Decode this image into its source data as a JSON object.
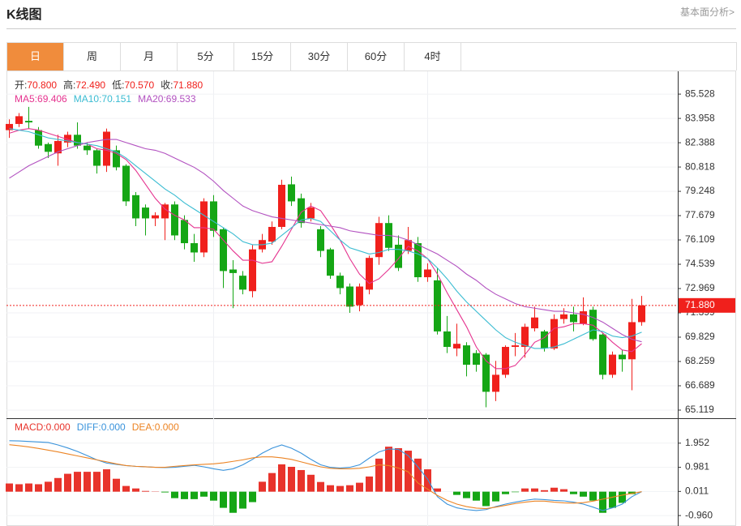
{
  "header": {
    "title": "K线图",
    "link": "基本面分析>"
  },
  "tabs": {
    "items": [
      "日",
      "周",
      "月",
      "5分",
      "15分",
      "30分",
      "60分",
      "4时"
    ],
    "active": 0
  },
  "chart_data": [
    {
      "type": "candlestick",
      "legend": [
        {
          "label": "开:",
          "value": "70.800"
        },
        {
          "label": "高:",
          "value": "72.490"
        },
        {
          "label": "低:",
          "value": "70.570"
        },
        {
          "label": "收:",
          "value": "71.880"
        }
      ],
      "open": [
        83.2,
        83.6,
        83.8,
        83.2,
        82.3,
        81.7,
        82.4,
        82.9,
        82.2,
        81.9,
        80.9,
        81.9,
        80.9,
        79.0,
        78.2,
        77.5,
        77.5,
        78.4,
        77.4,
        75.9,
        75.3,
        78.6,
        76.8,
        74.2,
        73.8,
        72.8,
        75.5,
        76.0,
        76.95,
        79.7,
        78.8,
        77.5,
        76.8,
        75.5,
        73.8,
        73.1,
        71.9,
        72.9,
        75.0,
        77.2,
        75.8,
        75.4,
        75.9,
        73.7,
        73.5,
        70.2,
        69.1,
        69.3,
        68.8,
        68.7,
        66.3,
        67.4,
        69.2,
        69.2,
        70.4,
        70.2,
        69.1,
        71.0,
        71.3,
        70.7,
        71.6,
        70.0,
        67.4,
        68.7,
        68.4,
        70.8
      ],
      "high": [
        83.9,
        84.3,
        84.7,
        83.4,
        82.4,
        82.9,
        83.1,
        83.7,
        82.4,
        82.0,
        83.3,
        82.2,
        81.0,
        79.2,
        78.4,
        77.9,
        78.5,
        78.6,
        77.7,
        76.5,
        78.8,
        79.0,
        76.9,
        74.8,
        74.1,
        75.8,
        76.5,
        77.3,
        80.0,
        80.2,
        79.1,
        78.5,
        77.0,
        75.6,
        74.0,
        73.3,
        73.3,
        75.1,
        77.6,
        77.7,
        76.4,
        76.95,
        76.3,
        74.6,
        74.3,
        71.2,
        70.7,
        69.5,
        69.0,
        68.8,
        68.3,
        69.3,
        70.1,
        70.7,
        71.8,
        70.3,
        71.3,
        71.7,
        71.8,
        72.4,
        71.8,
        70.1,
        68.9,
        69.0,
        72.3,
        72.49
      ],
      "low": [
        82.7,
        83.4,
        83.3,
        82.0,
        81.4,
        80.9,
        82.1,
        82.0,
        81.6,
        80.4,
        80.5,
        80.6,
        78.3,
        77.0,
        76.4,
        77.0,
        76.1,
        76.1,
        75.5,
        74.7,
        75.0,
        76.3,
        73.0,
        71.7,
        72.6,
        72.4,
        75.3,
        75.8,
        76.8,
        78.3,
        76.9,
        77.3,
        75.0,
        73.6,
        72.6,
        71.4,
        71.5,
        72.6,
        74.5,
        75.4,
        74.1,
        75.2,
        73.4,
        73.4,
        70.0,
        68.8,
        68.6,
        67.3,
        67.6,
        65.3,
        65.7,
        67.2,
        68.6,
        68.5,
        70.2,
        68.9,
        69.0,
        70.7,
        70.2,
        70.6,
        69.6,
        67.1,
        67.2,
        67.6,
        66.4,
        70.57
      ],
      "close": [
        83.6,
        84.1,
        83.7,
        82.2,
        81.8,
        82.5,
        82.9,
        82.2,
        81.9,
        80.9,
        83.1,
        80.8,
        78.6,
        77.5,
        77.5,
        77.7,
        78.4,
        76.4,
        75.9,
        75.3,
        78.6,
        76.7,
        74.1,
        73.97,
        72.9,
        75.5,
        76.1,
        76.95,
        79.67,
        78.6,
        77.2,
        78.2,
        75.4,
        73.8,
        73.0,
        71.8,
        73.1,
        74.95,
        77.2,
        75.6,
        74.3,
        76.1,
        73.7,
        74.2,
        70.2,
        69.2,
        69.4,
        68.05,
        68.05,
        66.3,
        67.4,
        69.2,
        69.3,
        70.5,
        71.1,
        69.1,
        71.0,
        71.3,
        70.8,
        71.5,
        69.7,
        67.4,
        68.7,
        68.4,
        70.8,
        71.88
      ],
      "up_color": "#f0201c",
      "down_color": "#15a615",
      "series": [
        {
          "name": "MA5:",
          "value_label": "69.406",
          "color": "#e5338f",
          "values": [
            83.0,
            83.2,
            83.3,
            83.2,
            83.0,
            82.8,
            82.6,
            82.4,
            82.3,
            82.0,
            81.9,
            81.7,
            81.3,
            80.6,
            79.7,
            78.8,
            78.1,
            77.7,
            77.4,
            76.9,
            76.9,
            76.8,
            76.1,
            75.4,
            74.8,
            74.8,
            74.6,
            74.7,
            75.7,
            76.8,
            77.9,
            78.3,
            78.0,
            77.1,
            76.1,
            74.9,
            73.9,
            73.3,
            73.6,
            74.2,
            74.9,
            75.7,
            75.4,
            74.9,
            73.9,
            72.7,
            71.6,
            70.5,
            69.2,
            68.3,
            67.8,
            67.8,
            68.0,
            68.7,
            69.5,
            69.8,
            70.4,
            70.5,
            70.7,
            70.7,
            70.6,
            70.1,
            69.5,
            69.0,
            68.9,
            69.406
          ]
        },
        {
          "name": "MA10:",
          "value_label": "70.151",
          "color": "#3bbcd2",
          "values": [
            83.3,
            83.2,
            83.1,
            82.9,
            82.7,
            82.6,
            82.5,
            82.4,
            82.3,
            82.2,
            82.0,
            81.8,
            81.4,
            80.9,
            80.4,
            79.9,
            79.4,
            79.0,
            78.5,
            78.1,
            77.7,
            77.3,
            76.9,
            76.5,
            76.0,
            75.8,
            75.8,
            75.9,
            76.4,
            76.9,
            77.4,
            77.5,
            77.3,
            76.7,
            76.1,
            75.6,
            75.4,
            75.2,
            75.3,
            75.5,
            75.5,
            75.4,
            75.2,
            74.9,
            74.3,
            73.6,
            72.8,
            72.1,
            71.5,
            70.9,
            70.3,
            69.8,
            69.5,
            69.3,
            69.1,
            69.1,
            69.2,
            69.4,
            69.7,
            70.0,
            70.3,
            70.2,
            69.9,
            69.8,
            69.9,
            70.151
          ]
        },
        {
          "name": "MA20:",
          "value_label": "69.533",
          "color": "#b251c0",
          "values": [
            80.1,
            80.5,
            80.9,
            81.2,
            81.5,
            81.8,
            82.0,
            82.2,
            82.4,
            82.5,
            82.6,
            82.6,
            82.4,
            82.2,
            82.0,
            81.9,
            81.7,
            81.4,
            81.1,
            80.8,
            80.4,
            79.9,
            79.3,
            78.8,
            78.3,
            78.0,
            77.8,
            77.6,
            77.5,
            77.4,
            77.3,
            77.2,
            77.1,
            77.0,
            76.9,
            76.7,
            76.6,
            76.5,
            76.4,
            76.4,
            76.3,
            76.1,
            75.8,
            75.5,
            75.2,
            74.8,
            74.4,
            73.9,
            73.5,
            73.0,
            72.6,
            72.3,
            72.0,
            71.8,
            71.7,
            71.6,
            71.5,
            71.5,
            71.4,
            71.3,
            71.1,
            70.8,
            70.4,
            70.0,
            69.7,
            69.533
          ]
        }
      ],
      "last_price": {
        "value": 71.88,
        "label": "71.880"
      },
      "ylim": [
        64.595,
        86.999
      ],
      "yticks": [
        85.528,
        83.958,
        82.388,
        80.818,
        79.248,
        77.679,
        76.109,
        74.539,
        72.969,
        71.399,
        69.829,
        68.259,
        66.689,
        65.119
      ],
      "grid": true
    },
    {
      "type": "macd",
      "series": [
        {
          "name": "MACD:",
          "value_label": "0.000",
          "color": "#e8332b",
          "down_color": "#15a615",
          "values": [
            0.33,
            0.3,
            0.33,
            0.3,
            0.4,
            0.55,
            0.72,
            0.8,
            0.8,
            0.8,
            0.9,
            0.52,
            0.23,
            0.13,
            0.03,
            0.01,
            -0.03,
            -0.26,
            -0.3,
            -0.3,
            -0.2,
            -0.36,
            -0.65,
            -0.85,
            -0.68,
            -0.42,
            0.4,
            0.75,
            1.1,
            1.0,
            0.87,
            0.68,
            0.39,
            0.26,
            0.23,
            0.26,
            0.36,
            0.61,
            1.33,
            1.81,
            1.75,
            1.65,
            1.33,
            0.9,
            0.13,
            0.0,
            -0.13,
            -0.26,
            -0.36,
            -0.58,
            -0.39,
            -0.1,
            -0.02,
            0.13,
            0.13,
            0.06,
            0.16,
            0.1,
            -0.1,
            -0.2,
            -0.36,
            -0.85,
            -0.65,
            -0.45,
            -0.1,
            0.0
          ]
        },
        {
          "name": "DIFF:",
          "value_label": "0.000",
          "color": "#3a93db",
          "values": [
            2.05,
            2.04,
            2.02,
            2.0,
            1.98,
            1.88,
            1.76,
            1.62,
            1.45,
            1.28,
            1.15,
            1.1,
            1.05,
            1.02,
            1.0,
            0.98,
            0.97,
            0.98,
            1.02,
            1.06,
            1.0,
            0.92,
            0.86,
            0.92,
            1.08,
            1.3,
            1.55,
            1.75,
            1.88,
            1.75,
            1.55,
            1.3,
            1.08,
            0.98,
            0.95,
            0.98,
            1.08,
            1.35,
            1.6,
            1.72,
            1.7,
            1.45,
            1.0,
            0.5,
            -0.2,
            -0.5,
            -0.65,
            -0.72,
            -0.76,
            -0.72,
            -0.6,
            -0.5,
            -0.42,
            -0.35,
            -0.3,
            -0.32,
            -0.35,
            -0.37,
            -0.42,
            -0.5,
            -0.62,
            -0.76,
            -0.65,
            -0.5,
            -0.2,
            0.0
          ]
        },
        {
          "name": "DEA:",
          "value_label": "0.000",
          "color": "#ec8424",
          "values": [
            1.89,
            1.85,
            1.8,
            1.74,
            1.67,
            1.6,
            1.52,
            1.44,
            1.36,
            1.28,
            1.2,
            1.12,
            1.05,
            1.02,
            1.0,
            0.98,
            0.98,
            1.02,
            1.05,
            1.08,
            1.1,
            1.12,
            1.16,
            1.22,
            1.28,
            1.36,
            1.4,
            1.4,
            1.36,
            1.3,
            1.2,
            1.1,
            1.0,
            0.94,
            0.92,
            0.92,
            0.94,
            1.0,
            1.08,
            1.05,
            0.95,
            0.8,
            0.35,
            0.1,
            -0.15,
            -0.35,
            -0.5,
            -0.6,
            -0.66,
            -0.68,
            -0.62,
            -0.55,
            -0.48,
            -0.42,
            -0.38,
            -0.38,
            -0.42,
            -0.45,
            -0.46,
            -0.44,
            -0.38,
            -0.3,
            -0.22,
            -0.14,
            -0.07,
            0.0
          ]
        }
      ],
      "ylim": [
        -1.348,
        2.923
      ],
      "yticks": [
        1.952,
        0.981,
        0.011,
        {
          "value": -0.96,
          "label": "-0.960"
        }
      ],
      "grid": true
    }
  ]
}
